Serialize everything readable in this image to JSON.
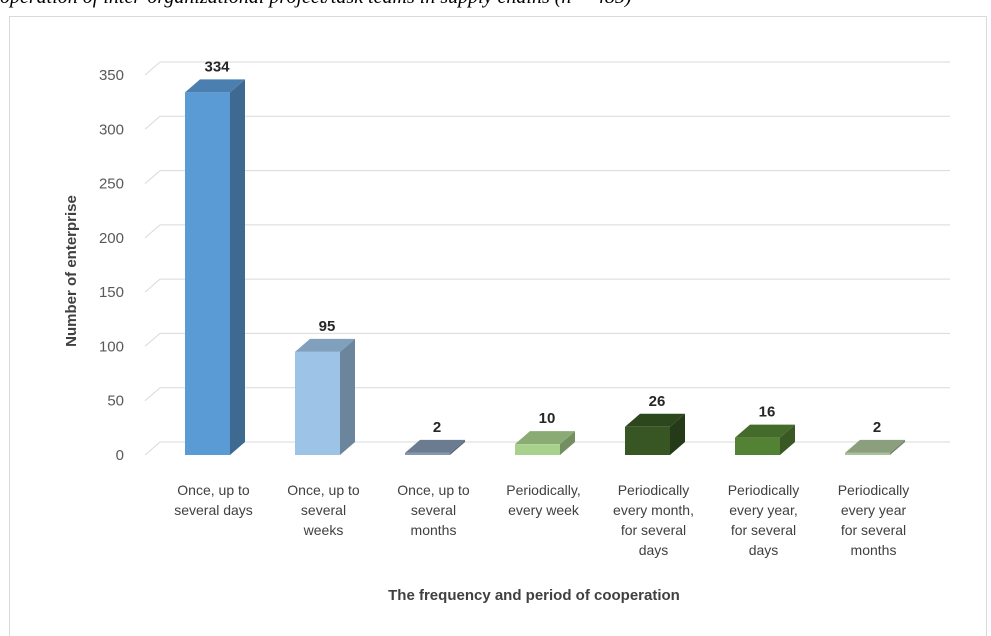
{
  "caption": "operation of inter-organizational project/task teams in supply chains (n = 485)",
  "chart_data": {
    "type": "bar",
    "title": "",
    "xlabel": "The frequency and period of cooperation",
    "ylabel": "Number of enterprise",
    "ylim": [
      0,
      350
    ],
    "yticks": [
      0,
      50,
      100,
      150,
      200,
      250,
      300,
      350
    ],
    "grid": true,
    "legend": "none",
    "categories": [
      [
        "Once, up to",
        "several days"
      ],
      [
        "Once, up to",
        "several",
        "weeks"
      ],
      [
        "Once, up to",
        "several",
        "months"
      ],
      [
        "Periodically,",
        "every week"
      ],
      [
        "Periodically",
        "every month,",
        "for several",
        "days"
      ],
      [
        "Periodically",
        "every year,",
        "for several",
        "days"
      ],
      [
        "Periodically",
        "every year",
        "for several",
        "months"
      ]
    ],
    "values": [
      334,
      95,
      2,
      10,
      26,
      16,
      2
    ],
    "colors": [
      "#5b9bd5",
      "#9dc3e6",
      "#8497b0",
      "#a9d18e",
      "#375623",
      "#548235",
      "#a9c29a"
    ]
  }
}
